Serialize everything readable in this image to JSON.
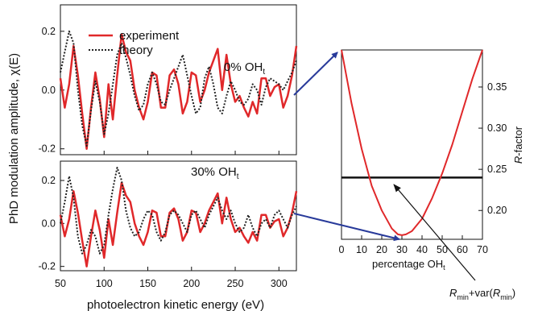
{
  "colors": {
    "experiment": "#e0282a",
    "theory": "#222222",
    "arrow": "#283a9a",
    "axis": "#111111"
  },
  "legend": {
    "experiment": "experiment",
    "theory": "theory"
  },
  "labels": {
    "ylabel": "PhD modulation amplitude, χ(E)",
    "xlabel": "photoelectron kinetic energy (eV)",
    "panel_top": {
      "text": "0% OH",
      "sub": "t"
    },
    "panel_bottom": {
      "text": "30% OH",
      "sub": "t"
    },
    "r_xlabel": {
      "text": "percentage OH",
      "sub": "t"
    },
    "r_ylabel": {
      "main": "R",
      "rest": "-factor"
    },
    "annotation": {
      "r": "R",
      "sub1": "min",
      "mid": "+var(",
      "r2": "R",
      "sub2": "min",
      "end": ")"
    }
  },
  "chart_data": [
    {
      "type": "line",
      "title": "0% OH",
      "xlabel": "photoelectron kinetic energy (eV)",
      "ylabel": "PhD modulation amplitude, χ(E)",
      "xlim": [
        50,
        320
      ],
      "ylim": [
        -0.22,
        0.29
      ],
      "yticks": [
        "-0.2",
        "0.0",
        "0.2"
      ],
      "xticks": [
        "50",
        "100",
        "150",
        "200",
        "250",
        "300"
      ],
      "series": [
        {
          "name": "experiment",
          "x": [
            50,
            55,
            60,
            65,
            70,
            75,
            80,
            85,
            90,
            95,
            100,
            105,
            110,
            115,
            120,
            125,
            130,
            135,
            140,
            145,
            150,
            155,
            160,
            165,
            170,
            175,
            180,
            185,
            190,
            195,
            200,
            205,
            210,
            215,
            220,
            225,
            230,
            235,
            240,
            245,
            250,
            255,
            260,
            265,
            270,
            275,
            280,
            285,
            290,
            295,
            300,
            305,
            310,
            315,
            320
          ],
          "y": [
            0.04,
            -0.06,
            0.02,
            0.15,
            0.05,
            -0.08,
            -0.2,
            -0.06,
            0.06,
            -0.03,
            -0.16,
            0.02,
            -0.1,
            0.05,
            0.19,
            0.13,
            0.1,
            0.0,
            -0.06,
            -0.1,
            -0.04,
            0.06,
            0.05,
            -0.06,
            -0.06,
            0.05,
            0.07,
            0.02,
            -0.08,
            -0.04,
            0.06,
            0.05,
            -0.04,
            0.0,
            0.06,
            0.1,
            0.14,
            0.0,
            0.12,
            0.02,
            -0.04,
            -0.02,
            -0.06,
            -0.09,
            -0.04,
            -0.08,
            0.04,
            0.04,
            -0.02,
            0.01,
            0.02,
            -0.06,
            -0.02,
            0.05,
            0.15
          ]
        },
        {
          "name": "theory",
          "x": [
            50,
            55,
            60,
            65,
            70,
            75,
            80,
            85,
            90,
            95,
            100,
            105,
            110,
            115,
            120,
            125,
            130,
            135,
            140,
            145,
            150,
            155,
            160,
            165,
            170,
            175,
            180,
            185,
            190,
            195,
            200,
            205,
            210,
            215,
            220,
            225,
            230,
            235,
            240,
            245,
            250,
            255,
            260,
            265,
            270,
            275,
            280,
            285,
            290,
            295,
            300,
            305,
            310,
            315,
            320
          ],
          "y": [
            0.06,
            0.13,
            0.2,
            0.16,
            0.0,
            -0.12,
            -0.19,
            -0.07,
            0.03,
            -0.04,
            -0.15,
            -0.08,
            0.02,
            0.12,
            0.16,
            0.11,
            0.05,
            -0.02,
            -0.07,
            -0.05,
            0.02,
            0.06,
            0.02,
            -0.04,
            -0.05,
            0.0,
            0.04,
            0.08,
            0.12,
            0.05,
            -0.02,
            -0.08,
            -0.06,
            0.04,
            0.08,
            0.02,
            -0.06,
            -0.08,
            -0.02,
            0.03,
            0.0,
            -0.04,
            -0.05,
            -0.03,
            0.02,
            0.0,
            -0.05,
            0.01,
            0.04,
            0.03,
            0.02,
            0.0,
            0.03,
            0.06,
            0.1
          ]
        }
      ]
    },
    {
      "type": "line",
      "title": "30% OH",
      "xlabel": "photoelectron kinetic energy (eV)",
      "ylabel": "PhD modulation amplitude, χ(E)",
      "xlim": [
        50,
        320
      ],
      "ylim": [
        -0.22,
        0.29
      ],
      "yticks": [
        "-0.2",
        "0.0",
        "0.2"
      ],
      "xticks": [
        "50",
        "100",
        "150",
        "200",
        "250",
        "300"
      ],
      "series": [
        {
          "name": "experiment",
          "x": [
            50,
            55,
            60,
            65,
            70,
            75,
            80,
            85,
            90,
            95,
            100,
            105,
            110,
            115,
            120,
            125,
            130,
            135,
            140,
            145,
            150,
            155,
            160,
            165,
            170,
            175,
            180,
            185,
            190,
            195,
            200,
            205,
            210,
            215,
            220,
            225,
            230,
            235,
            240,
            245,
            250,
            255,
            260,
            265,
            270,
            275,
            280,
            285,
            290,
            295,
            300,
            305,
            310,
            315,
            320
          ],
          "y": [
            0.04,
            -0.06,
            0.02,
            0.15,
            0.05,
            -0.08,
            -0.2,
            -0.06,
            0.06,
            -0.03,
            -0.16,
            0.02,
            -0.1,
            0.05,
            0.19,
            0.13,
            0.1,
            0.0,
            -0.06,
            -0.1,
            -0.04,
            0.06,
            0.05,
            -0.06,
            -0.06,
            0.05,
            0.07,
            0.02,
            -0.08,
            -0.04,
            0.06,
            0.05,
            -0.04,
            0.0,
            0.06,
            0.1,
            0.14,
            0.0,
            0.12,
            0.02,
            -0.04,
            -0.02,
            -0.06,
            -0.09,
            -0.04,
            -0.08,
            0.04,
            0.04,
            -0.02,
            0.01,
            0.02,
            -0.06,
            -0.02,
            0.05,
            0.15
          ]
        },
        {
          "name": "theory",
          "x": [
            50,
            55,
            60,
            65,
            70,
            75,
            80,
            85,
            90,
            95,
            100,
            105,
            110,
            115,
            120,
            125,
            130,
            135,
            140,
            145,
            150,
            155,
            160,
            165,
            170,
            175,
            180,
            185,
            190,
            195,
            200,
            205,
            210,
            215,
            220,
            225,
            230,
            235,
            240,
            245,
            250,
            255,
            260,
            265,
            270,
            275,
            280,
            285,
            290,
            295,
            300,
            305,
            310,
            315,
            320
          ],
          "y": [
            0.0,
            0.1,
            0.22,
            0.12,
            -0.06,
            -0.14,
            -0.1,
            -0.03,
            -0.06,
            -0.14,
            -0.1,
            0.04,
            0.16,
            0.26,
            0.2,
            0.06,
            -0.02,
            -0.06,
            -0.04,
            0.02,
            0.06,
            0.04,
            -0.04,
            -0.08,
            -0.04,
            0.04,
            0.06,
            0.04,
            0.0,
            -0.04,
            0.04,
            0.06,
            0.02,
            -0.02,
            0.04,
            0.08,
            0.12,
            0.06,
            0.02,
            0.06,
            0.0,
            -0.04,
            -0.02,
            0.04,
            -0.02,
            -0.06,
            0.0,
            0.02,
            -0.02,
            0.04,
            0.06,
            0.02,
            -0.02,
            0.04,
            0.08
          ]
        }
      ]
    },
    {
      "type": "line",
      "xlabel": "percentage OH",
      "ylabel": "R-factor",
      "xlim": [
        0,
        70
      ],
      "ylim": [
        0.165,
        0.395
      ],
      "xticks": [
        "0",
        "10",
        "20",
        "30",
        "40",
        "50",
        "60",
        "70"
      ],
      "yticks": [
        "0.20",
        "0.25",
        "0.30",
        "0.35"
      ],
      "series": [
        {
          "name": "",
          "x": [
            0,
            5,
            10,
            15,
            20,
            25,
            28,
            30,
            32,
            35,
            40,
            45,
            50,
            55,
            60,
            65,
            70
          ],
          "y": [
            0.395,
            0.33,
            0.275,
            0.23,
            0.2,
            0.178,
            0.171,
            0.17,
            0.171,
            0.175,
            0.19,
            0.215,
            0.245,
            0.28,
            0.32,
            0.36,
            0.395
          ]
        }
      ],
      "threshold": 0.24
    }
  ]
}
